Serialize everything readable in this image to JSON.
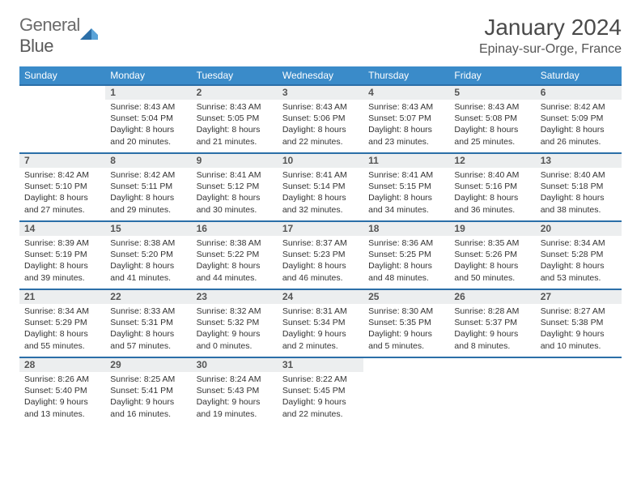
{
  "logo": {
    "text1": "General",
    "text2": "Blue"
  },
  "title": "January 2024",
  "location": "Epinay-sur-Orge, France",
  "weekdays": [
    "Sunday",
    "Monday",
    "Tuesday",
    "Wednesday",
    "Thursday",
    "Friday",
    "Saturday"
  ],
  "colors": {
    "header_bg": "#3a8bc9",
    "daynum_bg": "#eceeef",
    "border": "#2b6fa8"
  },
  "weeks": [
    [
      null,
      {
        "n": "1",
        "sr": "8:43 AM",
        "ss": "5:04 PM",
        "dl": "8 hours and 20 minutes."
      },
      {
        "n": "2",
        "sr": "8:43 AM",
        "ss": "5:05 PM",
        "dl": "8 hours and 21 minutes."
      },
      {
        "n": "3",
        "sr": "8:43 AM",
        "ss": "5:06 PM",
        "dl": "8 hours and 22 minutes."
      },
      {
        "n": "4",
        "sr": "8:43 AM",
        "ss": "5:07 PM",
        "dl": "8 hours and 23 minutes."
      },
      {
        "n": "5",
        "sr": "8:43 AM",
        "ss": "5:08 PM",
        "dl": "8 hours and 25 minutes."
      },
      {
        "n": "6",
        "sr": "8:42 AM",
        "ss": "5:09 PM",
        "dl": "8 hours and 26 minutes."
      }
    ],
    [
      {
        "n": "7",
        "sr": "8:42 AM",
        "ss": "5:10 PM",
        "dl": "8 hours and 27 minutes."
      },
      {
        "n": "8",
        "sr": "8:42 AM",
        "ss": "5:11 PM",
        "dl": "8 hours and 29 minutes."
      },
      {
        "n": "9",
        "sr": "8:41 AM",
        "ss": "5:12 PM",
        "dl": "8 hours and 30 minutes."
      },
      {
        "n": "10",
        "sr": "8:41 AM",
        "ss": "5:14 PM",
        "dl": "8 hours and 32 minutes."
      },
      {
        "n": "11",
        "sr": "8:41 AM",
        "ss": "5:15 PM",
        "dl": "8 hours and 34 minutes."
      },
      {
        "n": "12",
        "sr": "8:40 AM",
        "ss": "5:16 PM",
        "dl": "8 hours and 36 minutes."
      },
      {
        "n": "13",
        "sr": "8:40 AM",
        "ss": "5:18 PM",
        "dl": "8 hours and 38 minutes."
      }
    ],
    [
      {
        "n": "14",
        "sr": "8:39 AM",
        "ss": "5:19 PM",
        "dl": "8 hours and 39 minutes."
      },
      {
        "n": "15",
        "sr": "8:38 AM",
        "ss": "5:20 PM",
        "dl": "8 hours and 41 minutes."
      },
      {
        "n": "16",
        "sr": "8:38 AM",
        "ss": "5:22 PM",
        "dl": "8 hours and 44 minutes."
      },
      {
        "n": "17",
        "sr": "8:37 AM",
        "ss": "5:23 PM",
        "dl": "8 hours and 46 minutes."
      },
      {
        "n": "18",
        "sr": "8:36 AM",
        "ss": "5:25 PM",
        "dl": "8 hours and 48 minutes."
      },
      {
        "n": "19",
        "sr": "8:35 AM",
        "ss": "5:26 PM",
        "dl": "8 hours and 50 minutes."
      },
      {
        "n": "20",
        "sr": "8:34 AM",
        "ss": "5:28 PM",
        "dl": "8 hours and 53 minutes."
      }
    ],
    [
      {
        "n": "21",
        "sr": "8:34 AM",
        "ss": "5:29 PM",
        "dl": "8 hours and 55 minutes."
      },
      {
        "n": "22",
        "sr": "8:33 AM",
        "ss": "5:31 PM",
        "dl": "8 hours and 57 minutes."
      },
      {
        "n": "23",
        "sr": "8:32 AM",
        "ss": "5:32 PM",
        "dl": "9 hours and 0 minutes."
      },
      {
        "n": "24",
        "sr": "8:31 AM",
        "ss": "5:34 PM",
        "dl": "9 hours and 2 minutes."
      },
      {
        "n": "25",
        "sr": "8:30 AM",
        "ss": "5:35 PM",
        "dl": "9 hours and 5 minutes."
      },
      {
        "n": "26",
        "sr": "8:28 AM",
        "ss": "5:37 PM",
        "dl": "9 hours and 8 minutes."
      },
      {
        "n": "27",
        "sr": "8:27 AM",
        "ss": "5:38 PM",
        "dl": "9 hours and 10 minutes."
      }
    ],
    [
      {
        "n": "28",
        "sr": "8:26 AM",
        "ss": "5:40 PM",
        "dl": "9 hours and 13 minutes."
      },
      {
        "n": "29",
        "sr": "8:25 AM",
        "ss": "5:41 PM",
        "dl": "9 hours and 16 minutes."
      },
      {
        "n": "30",
        "sr": "8:24 AM",
        "ss": "5:43 PM",
        "dl": "9 hours and 19 minutes."
      },
      {
        "n": "31",
        "sr": "8:22 AM",
        "ss": "5:45 PM",
        "dl": "9 hours and 22 minutes."
      },
      null,
      null,
      null
    ]
  ],
  "labels": {
    "sunrise": "Sunrise:",
    "sunset": "Sunset:",
    "daylight": "Daylight:"
  }
}
